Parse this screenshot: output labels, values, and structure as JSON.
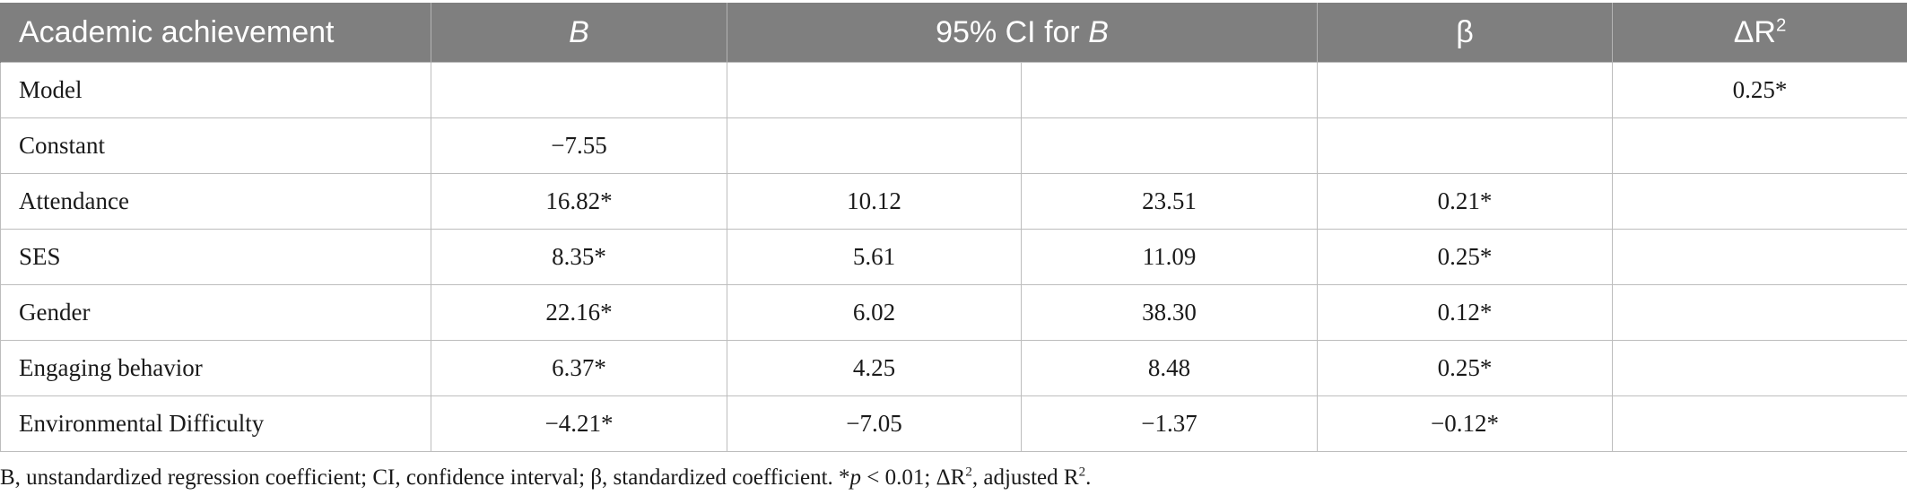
{
  "table": {
    "headers": {
      "col0": "Academic achievement",
      "col1": "B",
      "col2": "95% CI for B",
      "col4": "β",
      "col5_base": "ΔR",
      "col5_sup": "2"
    },
    "rows": [
      {
        "label": "Model",
        "b": "",
        "ci_low": "",
        "ci_high": "",
        "beta": "",
        "dr2": "0.25*"
      },
      {
        "label": "Constant",
        "b": "−7.55",
        "ci_low": "",
        "ci_high": "",
        "beta": "",
        "dr2": ""
      },
      {
        "label": "Attendance",
        "b": "16.82*",
        "ci_low": "10.12",
        "ci_high": "23.51",
        "beta": "0.21*",
        "dr2": ""
      },
      {
        "label": "SES",
        "b": "8.35*",
        "ci_low": "5.61",
        "ci_high": "11.09",
        "beta": "0.25*",
        "dr2": ""
      },
      {
        "label": "Gender",
        "b": "22.16*",
        "ci_low": "6.02",
        "ci_high": "38.30",
        "beta": "0.12*",
        "dr2": ""
      },
      {
        "label": "Engaging behavior",
        "b": "6.37*",
        "ci_low": "4.25",
        "ci_high": "8.48",
        "beta": "0.25*",
        "dr2": ""
      },
      {
        "label": "Environmental Difficulty",
        "b": "−4.21*",
        "ci_low": "−7.05",
        "ci_high": "−1.37",
        "beta": "−0.12*",
        "dr2": ""
      }
    ]
  },
  "footnote": {
    "part1": "B, unstandardized regression coefficient; CI, confidence interval; β, standardized coefficient. *",
    "p": "p",
    "part2": " < 0.01; ΔR",
    "sup1": "2",
    "part3": ", adjusted R",
    "sup2": "2",
    "part4": "."
  }
}
